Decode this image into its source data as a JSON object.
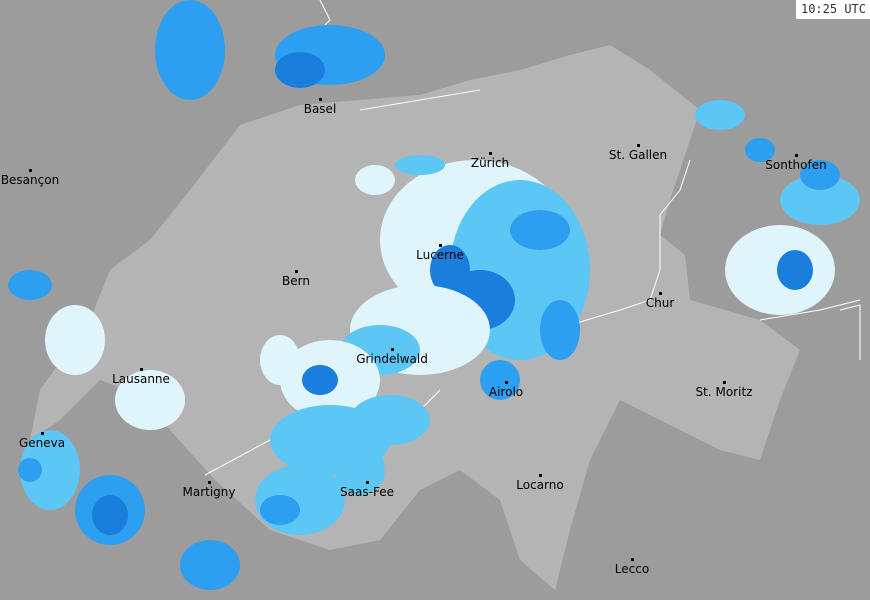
{
  "timestamp": "10:25 UTC",
  "colors": {
    "outside": "#9c9c9c",
    "country": "#b4b4b4",
    "border": "#ffffff",
    "rain_levels": [
      "#dff4fb",
      "#96e4f8",
      "#5cc6f4",
      "#2c9ff0",
      "#1a7fdc"
    ]
  },
  "cities": [
    {
      "name": "Basel"
    },
    {
      "name": "Besançon"
    },
    {
      "name": "Zürich"
    },
    {
      "name": "St. Gallen"
    },
    {
      "name": "Sonthofen"
    },
    {
      "name": "Lucerne"
    },
    {
      "name": "Bern"
    },
    {
      "name": "Chur"
    },
    {
      "name": "Lausanne"
    },
    {
      "name": "Grindelwald"
    },
    {
      "name": "Airolo"
    },
    {
      "name": "St. Moritz"
    },
    {
      "name": "Geneva"
    },
    {
      "name": "Martigny"
    },
    {
      "name": "Saas-Fee"
    },
    {
      "name": "Locarno"
    },
    {
      "name": "Lecco"
    }
  ]
}
